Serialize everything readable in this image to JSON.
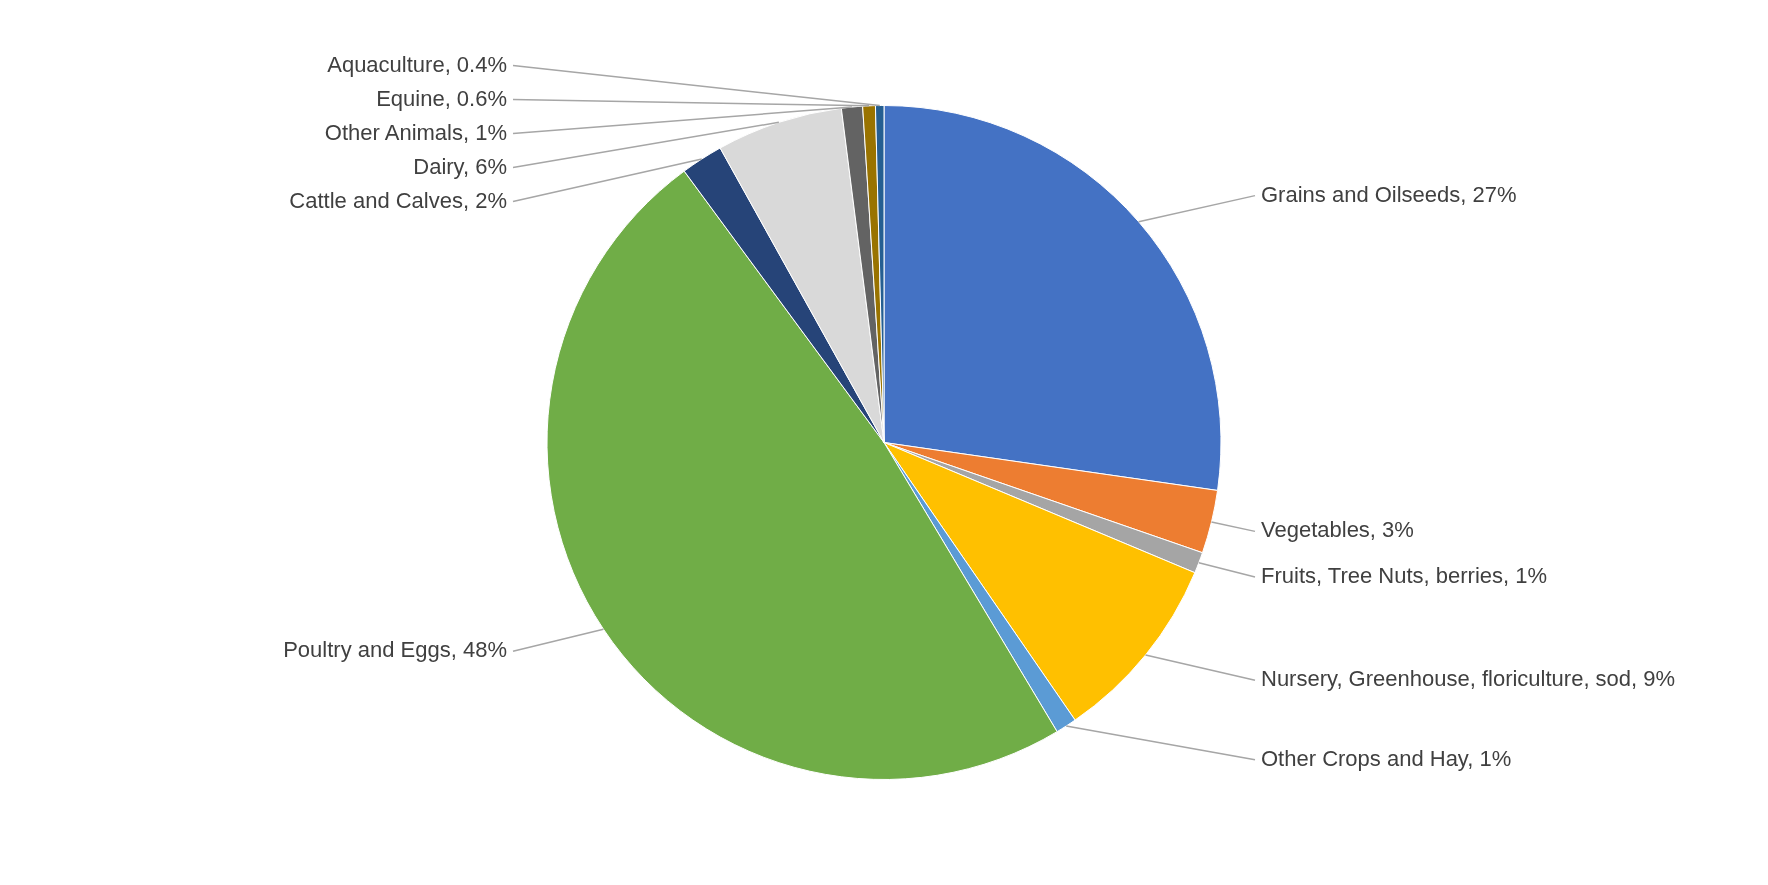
{
  "chart_data": {
    "type": "pie",
    "categories": [
      "Grains and Oilseeds",
      "Vegetables",
      "Fruits, Tree Nuts, berries",
      "Nursery, Greenhouse, floriculture, sod",
      "Other Crops and Hay",
      "Poultry and Eggs",
      "Cattle and Calves",
      "Dairy",
      "Other Animals",
      "Equine",
      "Aquaculture"
    ],
    "values": [
      27,
      3,
      1,
      9,
      1,
      48,
      2,
      6,
      1,
      0.6,
      0.4
    ],
    "value_labels": [
      "27%",
      "3%",
      "1%",
      "9%",
      "1%",
      "48%",
      "2%",
      "6%",
      "1%",
      "0.6%",
      "0.4%"
    ],
    "colors": [
      "#4472c4",
      "#ed7d31",
      "#a5a5a5",
      "#ffc000",
      "#5b9bd5",
      "#70ad47",
      "#264478",
      "#d9d9d9",
      "#636363",
      "#997300",
      "#255e91"
    ],
    "legend": false
  }
}
